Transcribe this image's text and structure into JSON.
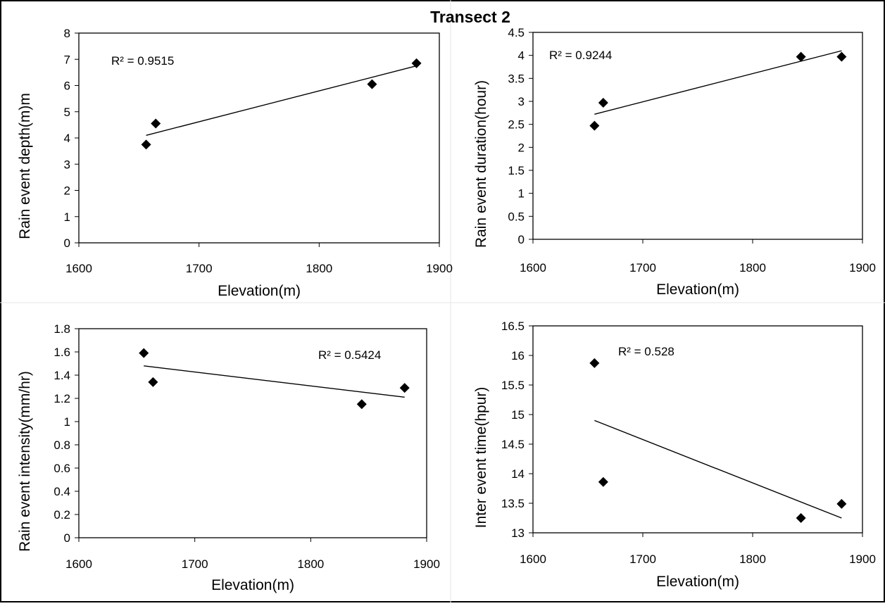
{
  "figure": {
    "title": "Transect 2"
  },
  "chart_data": [
    {
      "type": "scatter",
      "xlabel": "Elevation(m)",
      "ylabel": "Rain event depth(m)m",
      "xlim": [
        1600,
        1900
      ],
      "ylim": [
        0,
        8
      ],
      "xticks": [
        1600,
        1700,
        1800,
        1900
      ],
      "yticks": [
        0,
        1,
        2,
        3,
        4,
        5,
        6,
        7,
        8
      ],
      "ytick_labels": [
        "0",
        "1",
        "2",
        "3",
        "4",
        "5",
        "6",
        "7",
        "8"
      ],
      "x": [
        1656,
        1664,
        1844,
        1881
      ],
      "y": [
        3.75,
        4.55,
        6.05,
        6.85
      ],
      "trendline": {
        "x": [
          1656,
          1881
        ],
        "y": [
          4.1,
          6.75
        ]
      },
      "r2_label": "R² = 0.9515",
      "grid": false,
      "marker": "diamond"
    },
    {
      "type": "scatter",
      "xlabel": "Elevation(m)",
      "ylabel": "Rain event duration(hour)",
      "xlim": [
        1600,
        1900
      ],
      "ylim": [
        0,
        4.5
      ],
      "xticks": [
        1600,
        1700,
        1800,
        1900
      ],
      "yticks": [
        0,
        0.5,
        1,
        1.5,
        2,
        2.5,
        3,
        3.5,
        4,
        4.5
      ],
      "ytick_labels": [
        "0",
        "0.5",
        "1",
        "1.5",
        "2",
        "2.5",
        "3",
        "3.5",
        "4",
        "4.5"
      ],
      "x": [
        1656,
        1664,
        1844,
        1881
      ],
      "y": [
        2.47,
        2.97,
        3.97,
        3.97
      ],
      "trendline": {
        "x": [
          1656,
          1881
        ],
        "y": [
          2.72,
          4.1
        ]
      },
      "r2_label": "R² = 0.9244",
      "grid": false,
      "marker": "diamond"
    },
    {
      "type": "scatter",
      "xlabel": "Elevation(m)",
      "ylabel": "Rain event intensity(mm/hr)",
      "xlim": [
        1600,
        1900
      ],
      "ylim": [
        0,
        1.8
      ],
      "xticks": [
        1600,
        1700,
        1800,
        1900
      ],
      "yticks": [
        0,
        0.2,
        0.4,
        0.6,
        0.8,
        1,
        1.2,
        1.4,
        1.6,
        1.8
      ],
      "ytick_labels": [
        "0",
        "0.2",
        "0.4",
        "0.6",
        "0.8",
        "1",
        "1.2",
        "1.4",
        "1.6",
        "1.8"
      ],
      "x": [
        1656,
        1664,
        1844,
        1881
      ],
      "y": [
        1.59,
        1.34,
        1.15,
        1.29
      ],
      "trendline": {
        "x": [
          1656,
          1881
        ],
        "y": [
          1.48,
          1.21
        ]
      },
      "r2_label": "R² = 0.5424",
      "grid": false,
      "marker": "diamond"
    },
    {
      "type": "scatter",
      "xlabel": "Elevation(m)",
      "ylabel": "Inter event time(hpur)",
      "xlim": [
        1600,
        1900
      ],
      "ylim": [
        13,
        16.5
      ],
      "xticks": [
        1600,
        1700,
        1800,
        1900
      ],
      "yticks": [
        13,
        13.5,
        14,
        14.5,
        15,
        15.5,
        16,
        16.5
      ],
      "ytick_labels": [
        "13",
        "13.5",
        "14",
        "14.5",
        "15",
        "15.5",
        "16",
        "16.5"
      ],
      "x": [
        1656,
        1664,
        1844,
        1881
      ],
      "y": [
        15.87,
        13.86,
        13.25,
        13.49
      ],
      "trendline": {
        "x": [
          1656,
          1881
        ],
        "y": [
          14.9,
          13.25
        ]
      },
      "r2_label": "R² = 0.528",
      "grid": false,
      "marker": "diamond"
    }
  ]
}
